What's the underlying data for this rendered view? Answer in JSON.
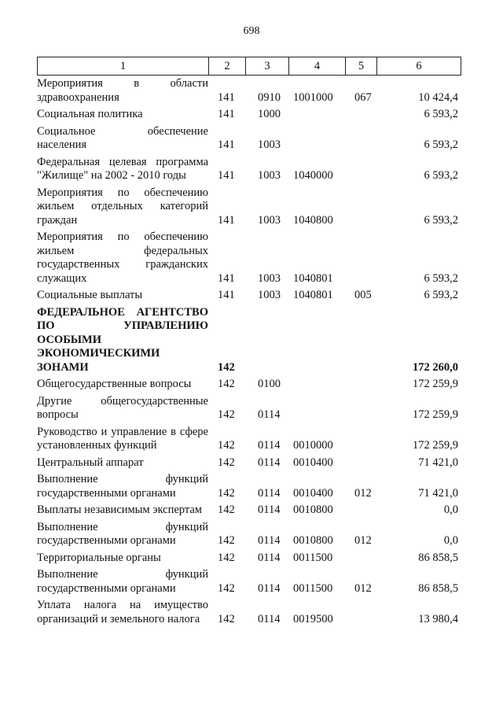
{
  "page_number": "698",
  "header": [
    "1",
    "2",
    "3",
    "4",
    "5",
    "6"
  ],
  "rows": [
    {
      "desc": "Мероприятия в области здравоохранения",
      "c2": "141",
      "c3": "0910",
      "c4": "1001000",
      "c5": "067",
      "c6": "10 424,4"
    },
    {
      "desc": "Социальная политика",
      "c2": "141",
      "c3": "1000",
      "c4": "",
      "c5": "",
      "c6": "6 593,2"
    },
    {
      "desc": "Социальное обеспечение населения",
      "c2": "141",
      "c3": "1003",
      "c4": "",
      "c5": "",
      "c6": "6 593,2"
    },
    {
      "desc": "Федеральная целевая программа \"Жилище\" на 2002 - 2010 годы",
      "c2": "141",
      "c3": "1003",
      "c4": "1040000",
      "c5": "",
      "c6": "6 593,2"
    },
    {
      "desc": "Мероприятия по обеспечению жильем отдельных категорий граждан",
      "c2": "141",
      "c3": "1003",
      "c4": "1040800",
      "c5": "",
      "c6": "6 593,2"
    },
    {
      "desc": "Мероприятия по обеспечению жильем федеральных государственных гражданских служащих",
      "c2": "141",
      "c3": "1003",
      "c4": "1040801",
      "c5": "",
      "c6": "6 593,2"
    },
    {
      "desc": "Социальные выплаты",
      "c2": "141",
      "c3": "1003",
      "c4": "1040801",
      "c5": "005",
      "c6": "6 593,2"
    },
    {
      "desc": "ФЕДЕРАЛЬНОЕ АГЕНТСТВО ПО УПРАВЛЕНИЮ ОСОБЫМИ ЭКОНОМИЧЕСКИМИ ЗОНАМИ",
      "c2": "142",
      "c3": "",
      "c4": "",
      "c5": "",
      "c6": "172 260,0",
      "bold": true
    },
    {
      "desc": "Общегосударственные вопросы",
      "c2": "142",
      "c3": "0100",
      "c4": "",
      "c5": "",
      "c6": "172 259,9"
    },
    {
      "desc": "Другие общегосударственные вопросы",
      "c2": "142",
      "c3": "0114",
      "c4": "",
      "c5": "",
      "c6": "172 259,9"
    },
    {
      "desc": "Руководство и управление в сфере установленных функций",
      "c2": "142",
      "c3": "0114",
      "c4": "0010000",
      "c5": "",
      "c6": "172 259,9"
    },
    {
      "desc": "Центральный аппарат",
      "c2": "142",
      "c3": "0114",
      "c4": "0010400",
      "c5": "",
      "c6": "71 421,0"
    },
    {
      "desc": "Выполнение функций государственными органами",
      "c2": "142",
      "c3": "0114",
      "c4": "0010400",
      "c5": "012",
      "c6": "71 421,0"
    },
    {
      "desc": "Выплаты независимым экспертам",
      "c2": "142",
      "c3": "0114",
      "c4": "0010800",
      "c5": "",
      "c6": "0,0"
    },
    {
      "desc": "Выполнение функций государственными органами",
      "c2": "142",
      "c3": "0114",
      "c4": "0010800",
      "c5": "012",
      "c6": "0,0"
    },
    {
      "desc": "Территориальные органы",
      "c2": "142",
      "c3": "0114",
      "c4": "0011500",
      "c5": "",
      "c6": "86 858,5"
    },
    {
      "desc": "Выполнение функций государственными органами",
      "c2": "142",
      "c3": "0114",
      "c4": "0011500",
      "c5": "012",
      "c6": "86 858,5"
    },
    {
      "desc": "Уплата налога на имущество организаций и земельного налога",
      "c2": "142",
      "c3": "0114",
      "c4": "0019500",
      "c5": "",
      "c6": "13 980,4"
    }
  ]
}
